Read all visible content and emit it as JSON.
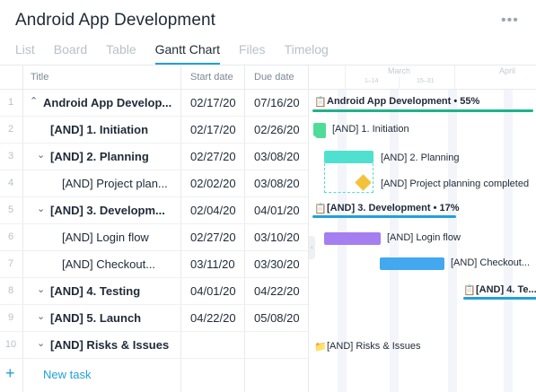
{
  "project_title": "Android App Development",
  "more_label": "•••",
  "tabs": [
    "List",
    "Board",
    "Table",
    "Gantt Chart",
    "Files",
    "Timelog"
  ],
  "active_tab": "Gantt Chart",
  "columns": {
    "title": "Title",
    "start": "Start date",
    "due": "Due date"
  },
  "rows": [
    {
      "num": "1",
      "name": "Android App Develop...",
      "start": "02/17/20",
      "due": "07/16/20"
    },
    {
      "num": "2",
      "name": "[AND] 1. Initiation",
      "start": "02/17/20",
      "due": "02/26/20"
    },
    {
      "num": "3",
      "name": "[AND] 2. Planning",
      "start": "02/27/20",
      "due": "03/08/20"
    },
    {
      "num": "4",
      "name": "[AND] Project plan...",
      "start": "02/02/20",
      "due": "03/08/20"
    },
    {
      "num": "5",
      "name": "[AND] 3. Developm...",
      "start": "02/04/20",
      "due": "04/01/20"
    },
    {
      "num": "6",
      "name": "[AND] Login flow",
      "start": "02/27/20",
      "due": "03/10/20"
    },
    {
      "num": "7",
      "name": "[AND] Checkout...",
      "start": "03/11/20",
      "due": "03/30/20"
    },
    {
      "num": "8",
      "name": "[AND] 4. Testing",
      "start": "04/01/20",
      "due": "04/22/20"
    },
    {
      "num": "9",
      "name": "[AND] 5. Launch",
      "start": "04/22/20",
      "due": "05/08/20"
    },
    {
      "num": "10",
      "name": "[AND] Risks & Issues",
      "start": "",
      "due": ""
    }
  ],
  "new_task": {
    "plus": "+",
    "label": "New task"
  },
  "timeline": {
    "months": [
      "March",
      "April"
    ],
    "weeks": [
      "1–14",
      "15–31"
    ]
  },
  "gantt_labels": {
    "project": "Android App Development • 55%",
    "initiation": "[AND] 1. Initiation",
    "planning": "[AND] 2. Planning",
    "planning_completed": "[AND] Project planning completed",
    "development": "[AND] 3. Development • 17%",
    "login": "[AND] Login flow",
    "checkout": "[AND] Checkout...",
    "testing": "[AND] 4. Te...",
    "risks": "[AND] Risks & Issues"
  },
  "colors": {
    "accent": "#22a0d8",
    "project_bar": "#1fb28a",
    "initiation": "#4fdc98",
    "planning": "#4fe0cf",
    "milestone": "#f3c23d",
    "login": "#a57ef0",
    "checkout": "#42a8ef"
  }
}
